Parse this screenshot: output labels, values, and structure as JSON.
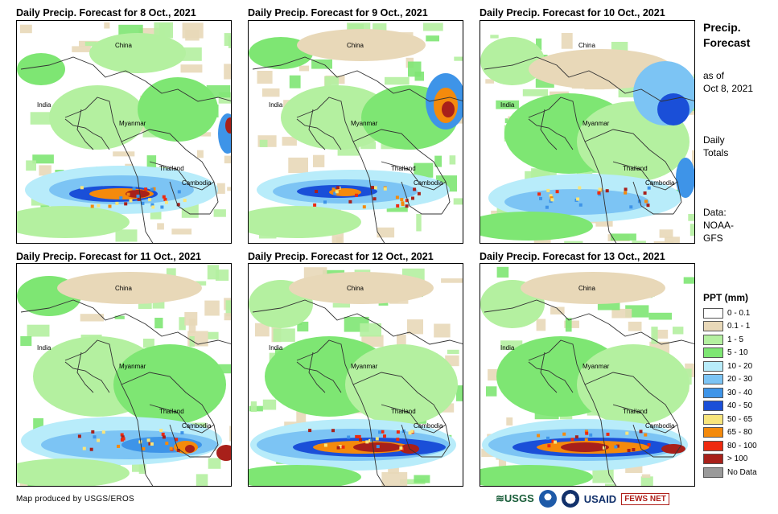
{
  "panels": [
    {
      "title": "Daily Precip. Forecast for 8 Oct., 2021"
    },
    {
      "title": "Daily Precip. Forecast for 9 Oct., 2021"
    },
    {
      "title": "Daily Precip. Forecast for 10 Oct., 2021"
    },
    {
      "title": "Daily Precip. Forecast for 11 Oct., 2021"
    },
    {
      "title": "Daily Precip. Forecast for 12 Oct., 2021"
    },
    {
      "title": "Daily Precip. Forecast for 13 Oct., 2021"
    }
  ],
  "places": {
    "china": "China",
    "india": "India",
    "myanmar": "Myanmar",
    "thailand": "Thailand",
    "cambodia": "Cambodia"
  },
  "sidebar": {
    "title_line1": "Precip.",
    "title_line2": "Forecast",
    "asof_line1": "as of",
    "asof_line2": "Oct 8, 2021",
    "daily_line1": "Daily",
    "daily_line2": "Totals",
    "data_line1": "Data:",
    "data_line2": "NOAA-",
    "data_line3": "GFS"
  },
  "legend": {
    "title": "PPT (mm)",
    "items": [
      {
        "label": "0 - 0.1",
        "color": "#ffffff"
      },
      {
        "label": "0.1 - 1",
        "color": "#e8d8b8"
      },
      {
        "label": "1 - 5",
        "color": "#b4f0a0"
      },
      {
        "label": "5 - 10",
        "color": "#7ee673"
      },
      {
        "label": "10 - 20",
        "color": "#b8ecfa"
      },
      {
        "label": "20 - 30",
        "color": "#7cc4f4"
      },
      {
        "label": "30 - 40",
        "color": "#3e94e8"
      },
      {
        "label": "40 - 50",
        "color": "#1a4fd8"
      },
      {
        "label": "50 - 65",
        "color": "#f8e57c"
      },
      {
        "label": "65 - 80",
        "color": "#f48a0c"
      },
      {
        "label": "80 - 100",
        "color": "#ee2a10"
      },
      {
        "label": "> 100",
        "color": "#a8201a"
      },
      {
        "label": "No Data",
        "color": "#9a9a9a"
      }
    ]
  },
  "footer": {
    "credit": "Map produced by USGS/EROS",
    "logo_usgs": "USGS",
    "logo_usaid": "USAID",
    "logo_fews": "FEWS NET"
  }
}
